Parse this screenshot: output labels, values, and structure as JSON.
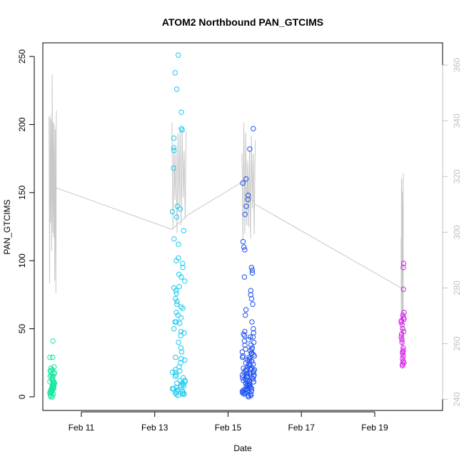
{
  "chart_data": {
    "type": "scatter",
    "title": "ATOM2 Northbound PAN_GTCIMS",
    "xlabel": "Date",
    "ylabel": "PAN_GTCIMS",
    "x_tick_labels": [
      "Feb 11",
      "Feb 13",
      "Feb 15",
      "Feb 17",
      "Feb 19"
    ],
    "x_tick_days": [
      11,
      13,
      15,
      17,
      19
    ],
    "xlim_days": [
      9.95,
      20.85
    ],
    "ylim": [
      -10,
      260
    ],
    "y_ticks": [
      0,
      50,
      100,
      150,
      200,
      250
    ],
    "y2_ticks": [
      240,
      260,
      280,
      300,
      320,
      340,
      360
    ],
    "y2lim": [
      236,
      368
    ],
    "grid": false,
    "secondary_line_color": "#c8c8c8",
    "clusters": [
      {
        "color": "#19e6a0",
        "t_range": [
          10.14,
          10.27
        ],
        "values": [
          0,
          1,
          2,
          3,
          3,
          4,
          5,
          5,
          6,
          7,
          8,
          8,
          9,
          10,
          11,
          12,
          13,
          14,
          15,
          16,
          17,
          18,
          19,
          20,
          22,
          29,
          29,
          41,
          2,
          6,
          9,
          12,
          4,
          7,
          10,
          14,
          3,
          5,
          8,
          11,
          0,
          2,
          15,
          17,
          19,
          21
        ]
      },
      {
        "color": "#19c8f0",
        "t_range": [
          13.48,
          13.83
        ],
        "values": [
          1,
          2,
          2,
          3,
          3,
          4,
          5,
          5,
          6,
          7,
          8,
          9,
          10,
          11,
          12,
          14,
          16,
          18,
          20,
          22,
          25,
          28,
          36,
          40,
          45,
          47,
          48,
          50,
          54,
          55,
          58,
          60,
          62,
          66,
          68,
          70,
          72,
          76,
          80,
          81,
          85,
          88,
          90,
          95,
          98,
          100,
          102,
          112,
          116,
          122,
          132,
          136,
          138,
          140,
          168,
          181,
          183,
          190,
          196,
          197,
          209,
          226,
          238,
          251,
          2,
          4,
          6,
          8,
          10,
          12,
          15,
          18,
          19,
          27,
          29,
          33,
          55,
          65,
          78
        ]
      },
      {
        "color": "#1e50f0",
        "t_range": [
          15.38,
          15.72
        ],
        "values": [
          0,
          1,
          1,
          2,
          2,
          3,
          3,
          4,
          4,
          5,
          5,
          6,
          6,
          7,
          7,
          8,
          8,
          9,
          9,
          10,
          10,
          11,
          11,
          12,
          12,
          13,
          13,
          14,
          14,
          15,
          15,
          16,
          16,
          17,
          17,
          18,
          18,
          19,
          19,
          20,
          20,
          21,
          22,
          23,
          24,
          25,
          26,
          27,
          28,
          29,
          30,
          31,
          32,
          33,
          34,
          35,
          36,
          38,
          40,
          42,
          44,
          45,
          46,
          48,
          50,
          55,
          60,
          64,
          68,
          72,
          75,
          78,
          88,
          91,
          93,
          95,
          108,
          110,
          114,
          134,
          140,
          145,
          148,
          157,
          160,
          182,
          197,
          2,
          3,
          5,
          6,
          8,
          9,
          11,
          12,
          14,
          15,
          17,
          18,
          20,
          21,
          23,
          24,
          26,
          27,
          29,
          30,
          32,
          35,
          38,
          41,
          44,
          47
        ]
      },
      {
        "color": "#dc19f0",
        "t_range": [
          19.72,
          19.8
        ],
        "values": [
          23,
          24,
          25,
          26,
          28,
          30,
          32,
          33,
          34,
          36,
          40,
          42,
          44,
          46,
          48,
          50,
          53,
          55,
          56,
          57,
          58,
          60,
          62,
          79,
          95,
          98
        ]
      }
    ],
    "secondary_series": {
      "name": "",
      "segments": [
        {
          "t_range": [
            10.12,
            10.32
          ],
          "y_max": 362,
          "y_min": 272
        },
        {
          "t_range": [
            13.47,
            13.86
          ],
          "y_max": 343,
          "y_min": 298
        },
        {
          "t_range": [
            15.38,
            15.74
          ],
          "y_max": 342,
          "y_min": 294
        },
        {
          "t_range": [
            19.72,
            19.78
          ],
          "y_max": 322,
          "y_min": 240
        }
      ],
      "trend": [
        {
          "t": 10.3,
          "y": 316
        },
        {
          "t": 13.47,
          "y": 301
        },
        {
          "t": 13.88,
          "y": 306
        },
        {
          "t": 15.38,
          "y": 318
        },
        {
          "t": 15.74,
          "y": 310
        },
        {
          "t": 19.72,
          "y": 280
        }
      ]
    }
  }
}
